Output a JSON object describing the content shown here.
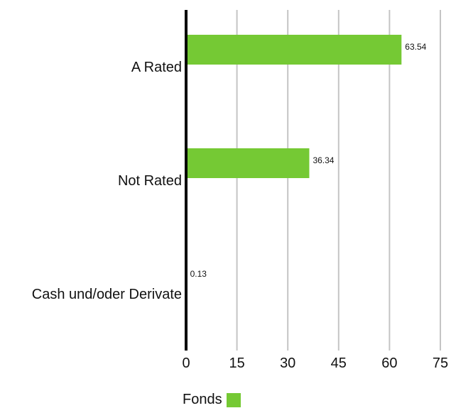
{
  "chart_data": {
    "type": "bar",
    "orientation": "horizontal",
    "categories": [
      "A Rated",
      "Not Rated",
      "Cash und/oder Derivate"
    ],
    "series": [
      {
        "name": "Fonds",
        "values": [
          63.54,
          36.34,
          0.13
        ],
        "color": "#75c934"
      }
    ],
    "data_labels": [
      "63.54",
      "36.34",
      "0.13"
    ],
    "xlim": [
      0,
      75
    ],
    "xticks": [
      0,
      15,
      30,
      45,
      60,
      75
    ],
    "grid": true,
    "grid_color": "#c4c4c4",
    "axis_color": "#000000",
    "legend_position": "bottom-center"
  }
}
